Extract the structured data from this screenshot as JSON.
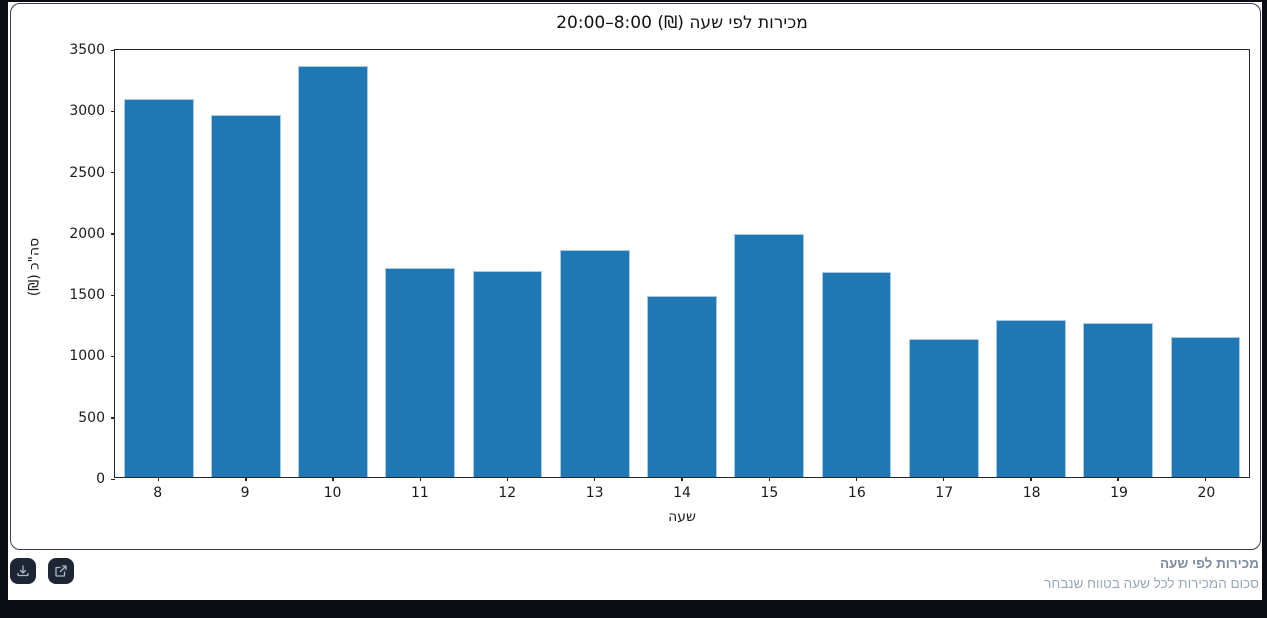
{
  "chart_data": {
    "type": "bar",
    "title": "מכירות לפי שעה (₪) 8:00–20:00",
    "xlabel": "שעה",
    "ylabel": "סה\"כ (₪)",
    "categories": [
      "8",
      "9",
      "10",
      "11",
      "12",
      "13",
      "14",
      "15",
      "16",
      "17",
      "18",
      "19",
      "20"
    ],
    "values": [
      3100,
      2965,
      3370,
      1715,
      1690,
      1860,
      1480,
      1990,
      1680,
      1130,
      1290,
      1265,
      1150
    ],
    "ylim": [
      0,
      3500
    ],
    "yticks": [
      0,
      500,
      1000,
      1500,
      2000,
      2500,
      3000,
      3500
    ],
    "bar_color": "#1f77b4",
    "bar_edge_color": "#a9cbe4",
    "grid": false,
    "legend": "none"
  },
  "footer": {
    "caption_title": "מכירות לפי שעה",
    "caption_subtitle": "סכום המכירות לכל שעה בטווח שנבחר",
    "icons": {
      "download": "download-icon",
      "open_external": "external-link-icon"
    }
  },
  "colors": {
    "frame": "#0b0d12",
    "card_border": "#39404f",
    "button_bg": "#1e2534",
    "icon_stroke": "#aeb9ca",
    "caption_title": "#7e8ca2",
    "caption_subtitle": "#9aa7ba"
  }
}
